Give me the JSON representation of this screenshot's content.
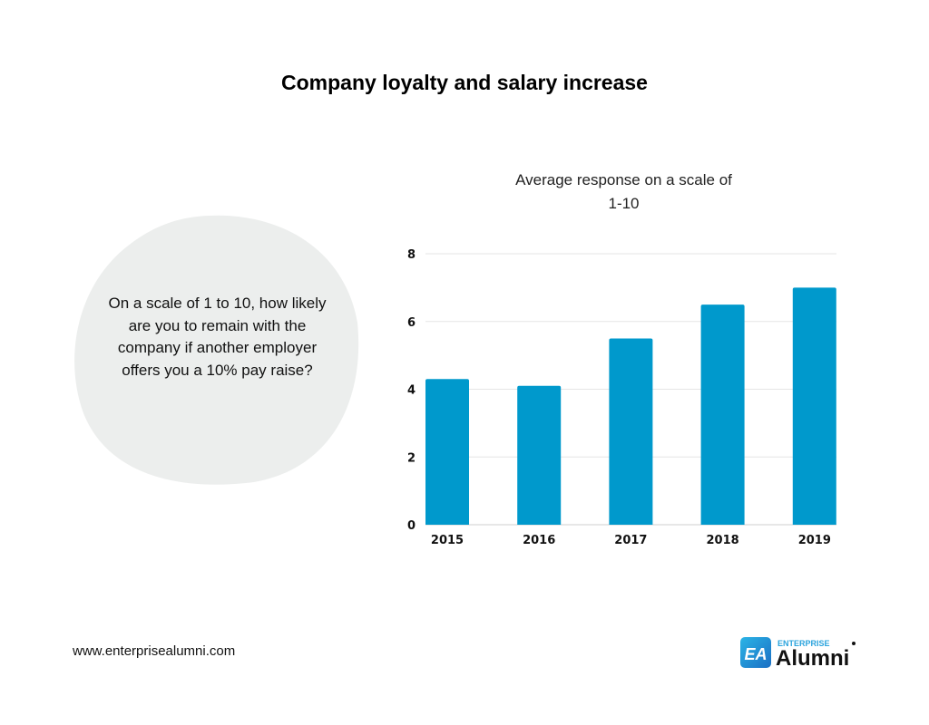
{
  "title": "Company loyalty and salary increase",
  "question": "On a scale of 1 to 10, how likely are you to remain with the company if another employer offers you a 10% pay raise?",
  "footer_url": "www.enterprisealumni.com",
  "logo": {
    "mark": "EA",
    "top": "ENTERPRISE",
    "word": "Alumni"
  },
  "colors": {
    "bar": "#0099cc",
    "blob": "#eceeed",
    "grid": "#e6e6e6"
  },
  "chart_data": {
    "type": "bar",
    "title": "Average response on a scale of 1-10",
    "categories": [
      "2015",
      "2016",
      "2017",
      "2018",
      "2019"
    ],
    "values": [
      4.3,
      4.1,
      5.5,
      6.5,
      7.0
    ],
    "ylim": [
      0,
      8
    ],
    "yticks": [
      0,
      2,
      4,
      6,
      8
    ],
    "grid": true,
    "xlabel": "",
    "ylabel": ""
  }
}
